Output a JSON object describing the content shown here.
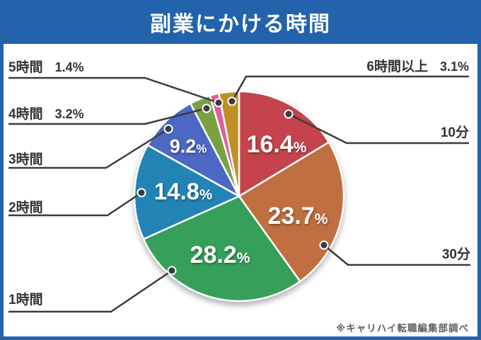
{
  "header": {
    "title": "副業にかける時間"
  },
  "chart_data": {
    "type": "pie",
    "title": "副業にかける時間",
    "unit": "%",
    "start_angle": "12 o'clock, clockwise",
    "categories": [
      "10分",
      "30分",
      "1時間",
      "2時間",
      "3時間",
      "4時間",
      "5時間",
      "6時間以上"
    ],
    "values": [
      16.4,
      23.7,
      28.2,
      14.8,
      9.2,
      3.2,
      1.4,
      3.1
    ],
    "colors": [
      "#c5434c",
      "#c06f41",
      "#36a05b",
      "#2284b5",
      "#4d68c4",
      "#7aa043",
      "#de5f9f",
      "#bf9025"
    ],
    "inside_label_categories": [
      "10分",
      "30分",
      "1時間",
      "2時間",
      "3時間"
    ],
    "outside_pct_categories": [
      "4時間",
      "5時間",
      "6時間以上"
    ],
    "legend_position": "none",
    "slice_border_color": "#ffffff",
    "leader_line_color": "#3b3b3b"
  },
  "footnote": "※キャリハイ転職編集部調べ",
  "colors": {
    "frame_blue": "#2263ac",
    "content_bg": "#ffffff",
    "title_text": "#ffffff",
    "category_text": "#333333",
    "footnote_text": "#5f5f5f"
  }
}
